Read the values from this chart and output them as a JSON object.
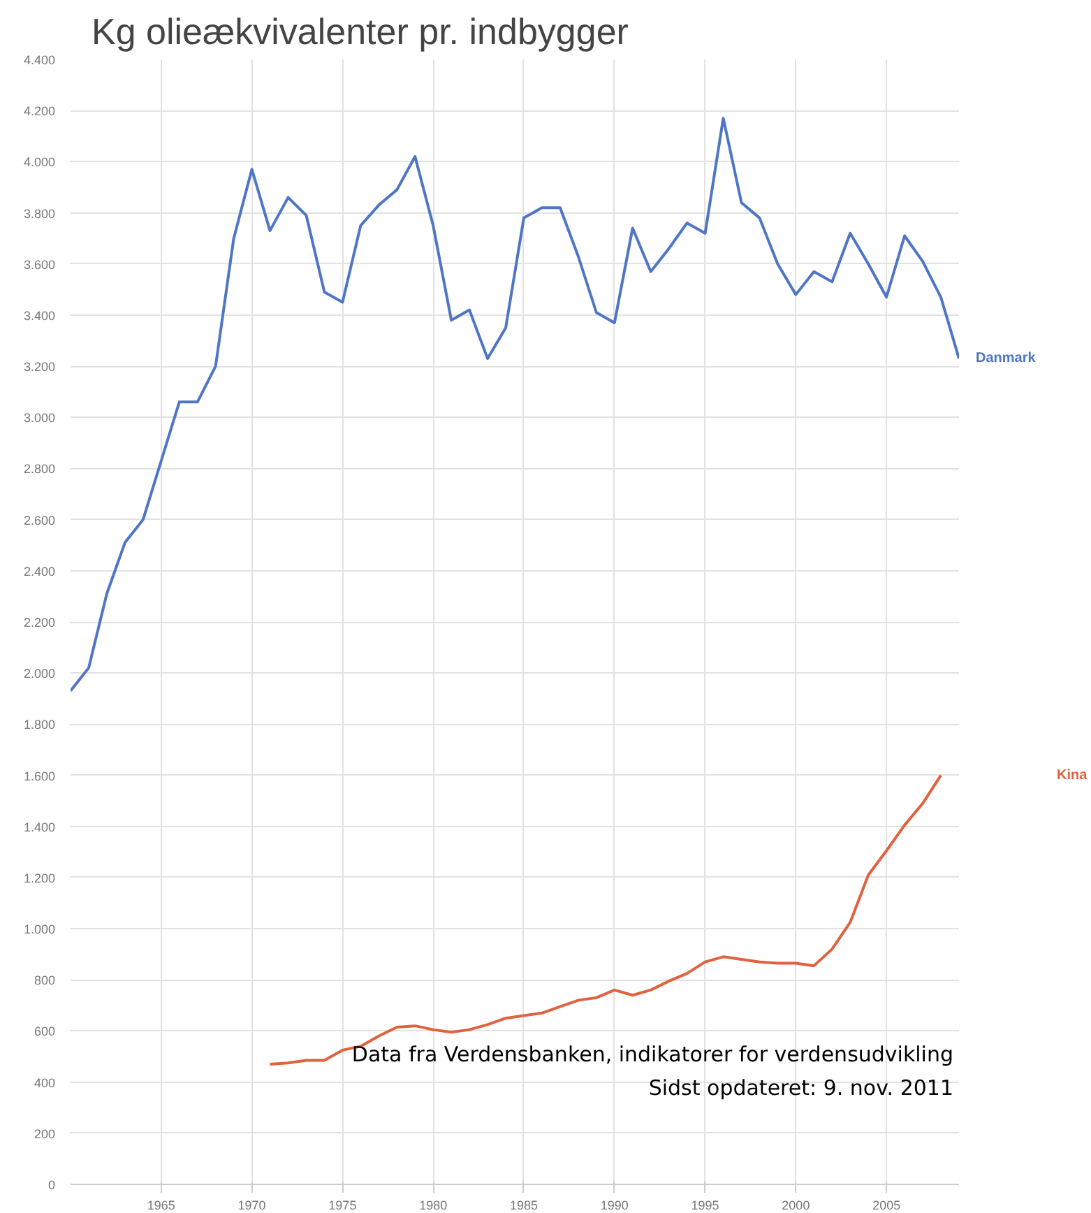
{
  "chart_data": {
    "type": "line",
    "title": "Kg olieækvivalenter pr. indbygger",
    "x": [
      1960,
      1961,
      1962,
      1963,
      1964,
      1965,
      1966,
      1967,
      1968,
      1969,
      1970,
      1971,
      1972,
      1973,
      1974,
      1975,
      1976,
      1977,
      1978,
      1979,
      1980,
      1981,
      1982,
      1983,
      1984,
      1985,
      1986,
      1987,
      1988,
      1989,
      1990,
      1991,
      1992,
      1993,
      1994,
      1995,
      1996,
      1997,
      1998,
      1999,
      2000,
      2001,
      2002,
      2003,
      2004,
      2005,
      2006,
      2007,
      2008,
      2009
    ],
    "series": [
      {
        "name": "Danmark",
        "color": "#4f76c6",
        "values": [
          1930,
          2020,
          2310,
          2510,
          2600,
          2830,
          3060,
          3060,
          3200,
          3700,
          3970,
          3730,
          3860,
          3790,
          3490,
          3450,
          3750,
          3830,
          3890,
          4020,
          3750,
          3380,
          3420,
          3230,
          3350,
          3780,
          3820,
          3820,
          3630,
          3410,
          3370,
          3740,
          3570,
          3660,
          3760,
          3720,
          4170,
          3840,
          3780,
          3600,
          3480,
          3570,
          3530,
          3720,
          3600,
          3470,
          3710,
          3610,
          3470,
          3230
        ]
      },
      {
        "name": "Kina",
        "color": "#e0623f",
        "values": [
          null,
          null,
          null,
          null,
          null,
          null,
          null,
          null,
          null,
          null,
          null,
          470,
          475,
          485,
          485,
          525,
          540,
          580,
          615,
          620,
          605,
          595,
          605,
          625,
          650,
          660,
          670,
          695,
          720,
          730,
          760,
          740,
          760,
          795,
          825,
          870,
          890,
          880,
          870,
          865,
          865,
          855,
          920,
          1025,
          1210,
          1305,
          1405,
          1490,
          1600,
          null
        ]
      }
    ],
    "xlim": [
      1960,
      2009
    ],
    "ylim": [
      0,
      4400
    ],
    "xticks": [
      1965,
      1970,
      1975,
      1980,
      1985,
      1990,
      1995,
      2000,
      2005
    ],
    "yticks": [
      0,
      200,
      400,
      600,
      800,
      {
        "value": 1000,
        "label": "1.000"
      },
      {
        "value": 1200,
        "label": "1.200"
      },
      {
        "value": 1400,
        "label": "1.400"
      },
      {
        "value": 1600,
        "label": "1.600"
      },
      {
        "value": 1800,
        "label": "1.800"
      },
      {
        "value": 2000,
        "label": "2.000"
      },
      {
        "value": 2200,
        "label": "2.200"
      },
      {
        "value": 2400,
        "label": "2.400"
      },
      {
        "value": 2600,
        "label": "2.600"
      },
      {
        "value": 2800,
        "label": "2.800"
      },
      {
        "value": 3000,
        "label": "3.000"
      },
      {
        "value": 3200,
        "label": "3.200"
      },
      {
        "value": 3400,
        "label": "3.400"
      },
      {
        "value": 3600,
        "label": "3.600"
      },
      {
        "value": 3800,
        "label": "3.800"
      },
      {
        "value": 4000,
        "label": "4.000"
      },
      {
        "value": 4200,
        "label": "4.200"
      },
      {
        "value": 4400,
        "label": "4.400"
      }
    ],
    "grid": true,
    "marker": "none",
    "line_style": "solid",
    "annotations": [
      "Data fra Verdensbanken, indikatorer for verdensudvikling",
      "Sidst opdateret: 9. nov. 2011"
    ]
  }
}
